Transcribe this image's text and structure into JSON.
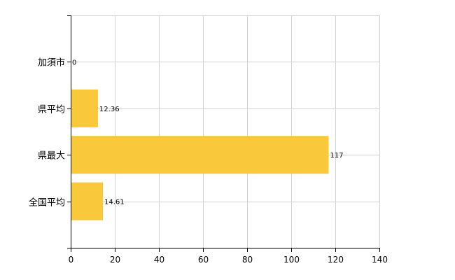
{
  "chart_data": {
    "type": "bar",
    "orientation": "horizontal",
    "categories": [
      "加須市",
      "県平均",
      "県最大",
      "全国平均"
    ],
    "values": [
      0,
      12.36,
      117,
      14.61
    ],
    "value_labels": [
      "0",
      "12.36",
      "117",
      "14.61"
    ],
    "xlim": [
      0,
      140
    ],
    "x_ticks": [
      0,
      20,
      40,
      60,
      80,
      100,
      120,
      140
    ],
    "x_tick_labels": [
      "0",
      "20",
      "40",
      "60",
      "80",
      "100",
      "120",
      "140"
    ],
    "grid": true,
    "bar_color": "#F9C93B",
    "grid_color": "#D3D3D3"
  }
}
